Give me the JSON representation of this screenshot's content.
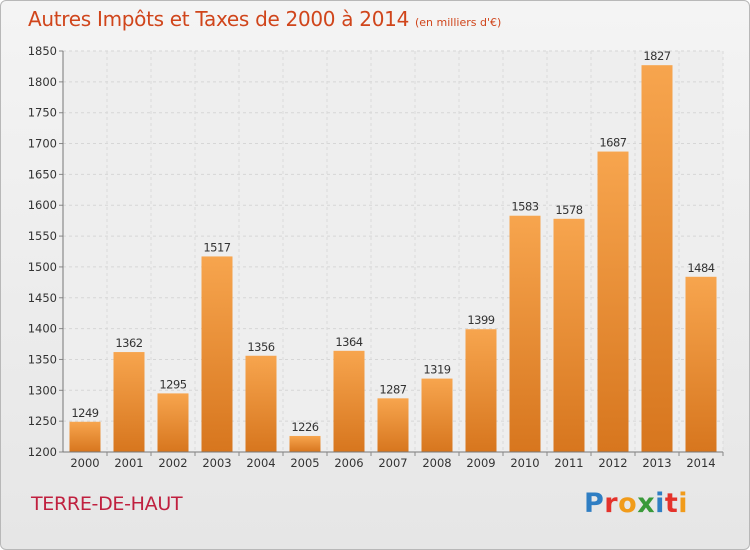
{
  "header": {
    "title": "Autres Impôts et Taxes de 2000 à 2014",
    "unit": "(en milliers d'€)"
  },
  "commune": "TERRE-DE-HAUT",
  "logo": {
    "letters": [
      "P",
      "r",
      "o",
      "x",
      "i",
      "t",
      "i"
    ],
    "colors": [
      "#2f7ec3",
      "#e4322b",
      "#f19b1a",
      "#3a9a3a",
      "#2f7ec3",
      "#e4322b",
      "#f19b1a"
    ]
  },
  "colors": {
    "title": "#d0451b",
    "commune": "#c0203f",
    "bar_light": "#f7a54e",
    "bar_dark": "#d7761e"
  },
  "chart_data": {
    "type": "bar",
    "categories": [
      "2000",
      "2001",
      "2002",
      "2003",
      "2004",
      "2005",
      "2006",
      "2007",
      "2008",
      "2009",
      "2010",
      "2011",
      "2012",
      "2013",
      "2014"
    ],
    "values": [
      1249,
      1362,
      1295,
      1517,
      1356,
      1226,
      1364,
      1287,
      1319,
      1399,
      1583,
      1578,
      1687,
      1827,
      1484
    ],
    "ylim": [
      1200,
      1850
    ],
    "yticks": [
      1200,
      1250,
      1300,
      1350,
      1400,
      1450,
      1500,
      1550,
      1600,
      1650,
      1700,
      1750,
      1800,
      1850
    ],
    "grid": true,
    "data_labels": true
  }
}
